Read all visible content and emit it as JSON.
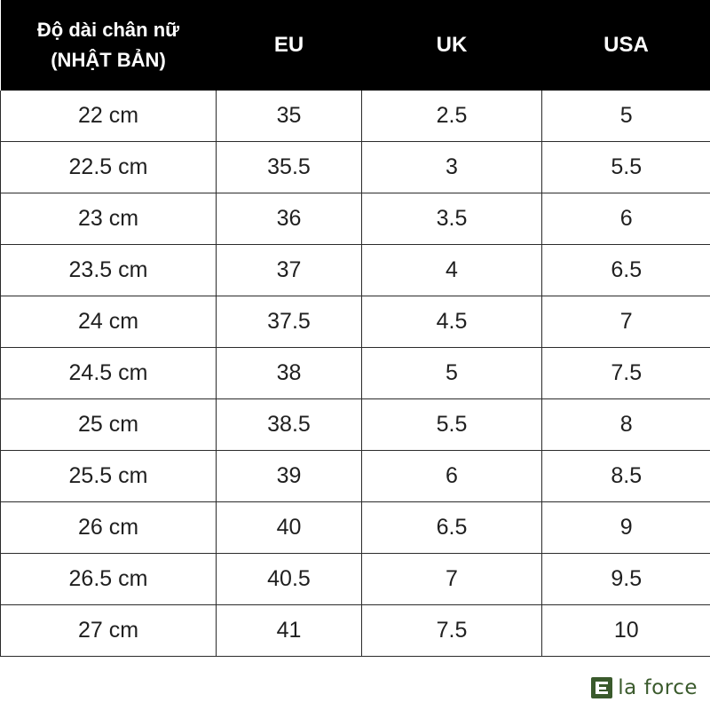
{
  "table": {
    "headers": [
      "Độ dài chân nữ",
      "(NHẬT BẢN)",
      "EU",
      "UK",
      "USA"
    ],
    "header_first_line1": "Độ dài chân nữ",
    "header_first_line2": "(NHẬT BẢN)",
    "header_eu": "EU",
    "header_uk": "UK",
    "header_usa": "USA",
    "rows": [
      [
        "22 cm",
        "35",
        "2.5",
        "5"
      ],
      [
        "22.5 cm",
        "35.5",
        "3",
        "5.5"
      ],
      [
        "23 cm",
        "36",
        "3.5",
        "6"
      ],
      [
        "23.5 cm",
        "37",
        "4",
        "6.5"
      ],
      [
        "24 cm",
        "37.5",
        "4.5",
        "7"
      ],
      [
        "24.5 cm",
        "38",
        "5",
        "7.5"
      ],
      [
        "25 cm",
        "38.5",
        "5.5",
        "8"
      ],
      [
        "25.5 cm",
        "39",
        "6",
        "8.5"
      ],
      [
        "26 cm",
        "40",
        "6.5",
        "9"
      ],
      [
        "26.5 cm",
        "40.5",
        "7",
        "9.5"
      ],
      [
        "27 cm",
        "41",
        "7.5",
        "10"
      ]
    ]
  },
  "brand": {
    "name": "la force",
    "icon": "la-force-logo-icon",
    "color": "#3a5a2c"
  },
  "colors": {
    "header_bg": "#000000",
    "header_text": "#ffffff",
    "grid_line": "#2b2b2b"
  }
}
